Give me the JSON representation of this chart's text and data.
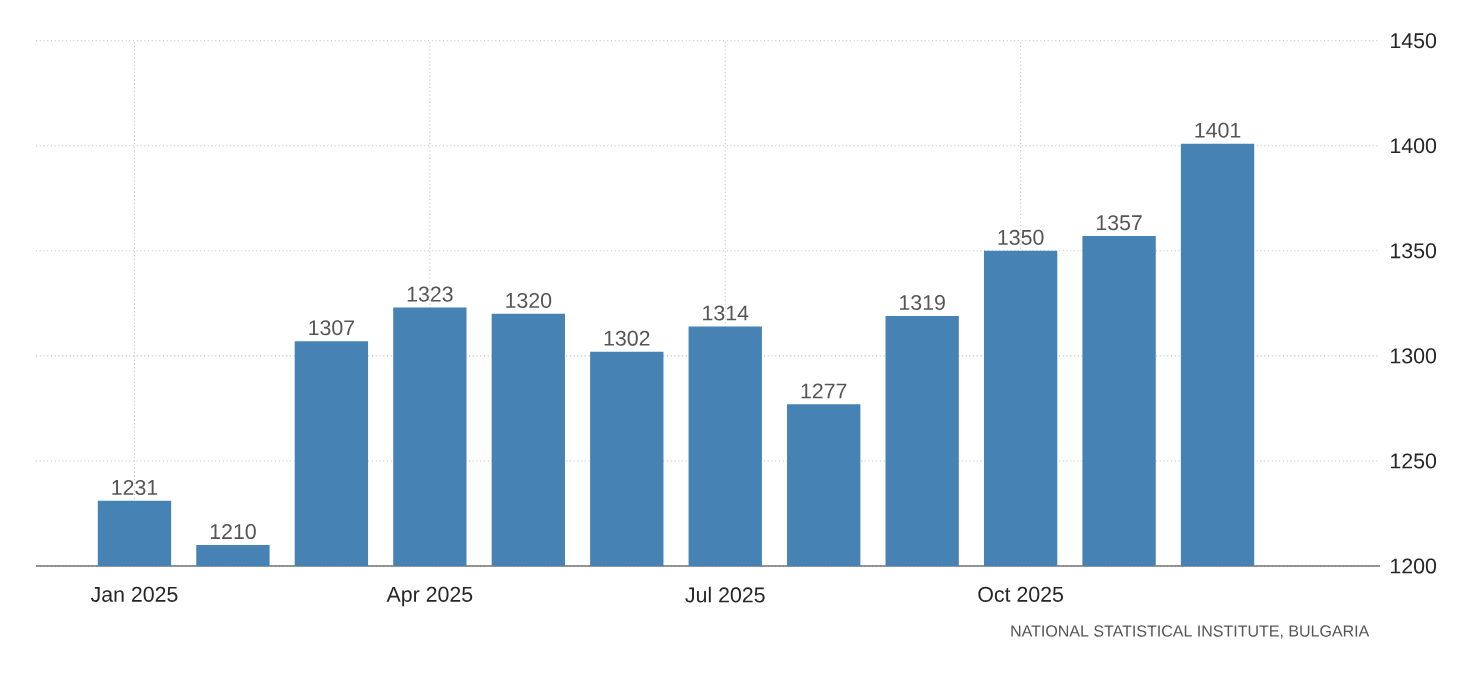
{
  "chart_data": {
    "type": "bar",
    "categories": [
      "Jan 2025",
      null,
      null,
      "Apr 2025",
      null,
      null,
      "Jul 2025",
      null,
      null,
      "Oct 2025",
      null,
      null
    ],
    "values": [
      1231,
      1210,
      1307,
      1323,
      1320,
      1302,
      1314,
      1277,
      1319,
      1350,
      1357,
      1401
    ],
    "color": "#4682b4",
    "ylim": [
      1200,
      1450
    ],
    "yticks": [
      1200,
      1250,
      1300,
      1350,
      1400,
      1450
    ],
    "grid": true,
    "data_labels": true,
    "annotations": [
      "NATIONAL STATISTICAL INSTITUTE, BULGARIA"
    ]
  }
}
